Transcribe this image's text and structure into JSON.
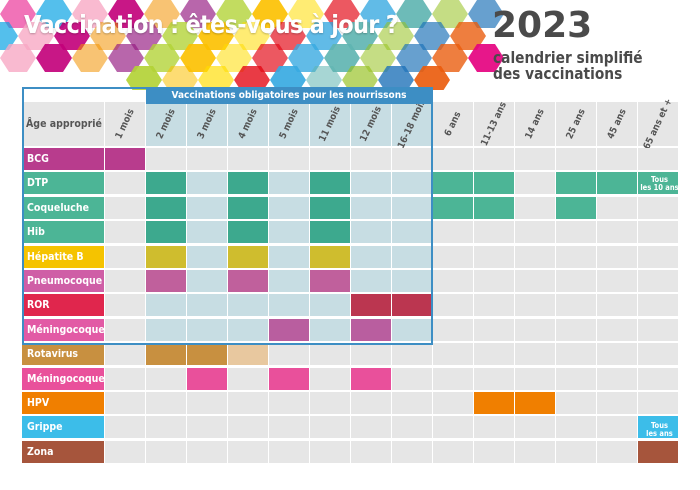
{
  "header": {
    "title": "Vaccination : êtes-vous à jour ?",
    "year": "2023",
    "subtitle_line1": "calendrier simplifié",
    "subtitle_line2": "des vaccinations"
  },
  "table": {
    "age_header": "Âge approprié",
    "mandatory_label": "Vaccinations obligatoires pour les nourrissons",
    "ages": [
      "1 mois",
      "2 mois",
      "3 mois",
      "4 mois",
      "5 mois",
      "11 mois",
      "12 mois",
      "16-18 mois",
      "6 ans",
      "11-13 ans",
      "14 ans",
      "25 ans",
      "45 ans",
      "65 ans et +"
    ],
    "mandatory_age_columns": [
      1,
      2,
      3,
      4,
      5,
      6,
      7
    ],
    "rows": [
      {
        "name": "BCG",
        "color": "#b83c8d",
        "doses": [
          0
        ],
        "mandatory": false
      },
      {
        "name": "DTP",
        "color": "#4cb596",
        "doses": [
          1,
          3,
          5,
          8,
          9,
          11,
          12,
          13
        ],
        "mandatory": true
      },
      {
        "name": "Coqueluche",
        "color": "#4cb596",
        "doses": [
          1,
          3,
          5,
          8,
          9,
          11
        ],
        "mandatory": true
      },
      {
        "name": "Hib",
        "color": "#4cb596",
        "doses": [
          1,
          3,
          5
        ],
        "mandatory": true
      },
      {
        "name": "Hépatite B",
        "color": "#f5c300",
        "doses": [
          1,
          3,
          5
        ],
        "mandatory": true
      },
      {
        "name": "Pneumocoque",
        "color": "#cf5ea6",
        "doses": [
          1,
          3,
          5
        ],
        "mandatory": true
      },
      {
        "name": "ROR",
        "color": "#e0264d",
        "doses": [
          6,
          7
        ],
        "mandatory": true
      },
      {
        "name": "Méningocoque C",
        "color": "#e25aa5",
        "doses": [
          4,
          6
        ],
        "mandatory": true
      },
      {
        "name": "Rotavirus",
        "color": "#c89040",
        "doses": [
          1,
          2,
          3
        ],
        "partial": [
          3
        ],
        "mandatory": false
      },
      {
        "name": "Méningocoque B",
        "color": "#e9509b",
        "doses": [
          2,
          4,
          6
        ],
        "mandatory": false
      },
      {
        "name": "HPV",
        "color": "#f07f00",
        "doses": [
          9,
          10
        ],
        "mandatory": false
      },
      {
        "name": "Grippe",
        "color": "#3cbde9",
        "doses": [
          13
        ],
        "mandatory": false
      },
      {
        "name": "Zona",
        "color": "#a6553c",
        "doses": [
          13
        ],
        "mandatory": false
      }
    ],
    "notes": {
      "dtp_line1": "Tous",
      "dtp_line2": "les 10 ans",
      "grippe_line1": "Tous",
      "grippe_line2": "les ans"
    }
  },
  "colors": {
    "frame_blue": "#3d8ec4",
    "cell_grey": "#e6e6e6",
    "cell_blue": "#c7dde3",
    "filled_in_mandatory": {
      "#4cb596": "#3da98e",
      "#f5c300": "#cfbd2e",
      "#cf5ea6": "#c0609c",
      "#e0264d": "#bb3650",
      "#e25aa5": "#b95e9f"
    },
    "rotavirus_light": "#e8c89f"
  }
}
